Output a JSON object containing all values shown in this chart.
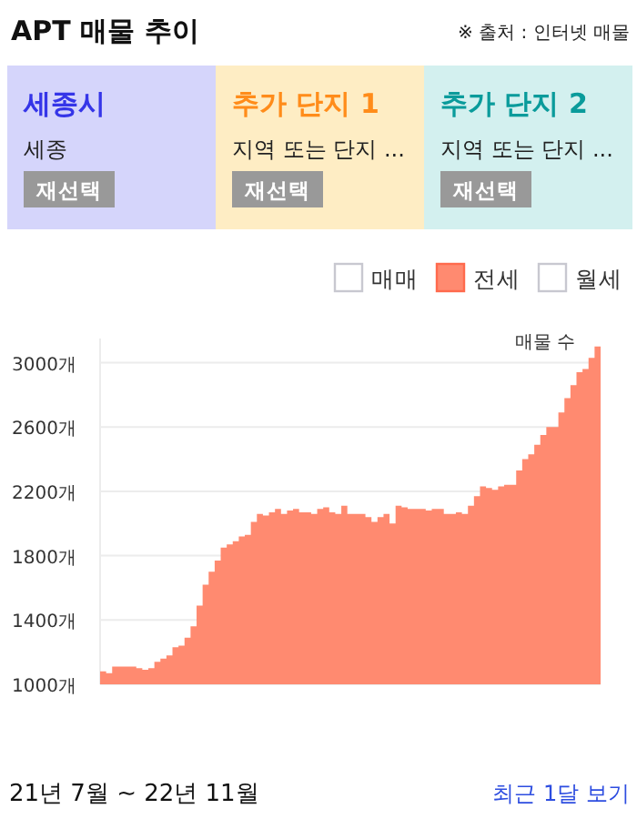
{
  "chart_data": [
    {
      "type": "other",
      "title": "세종시",
      "color": "#3535e8",
      "annotations": [
        "세종",
        "재선택"
      ]
    },
    {
      "type": "other",
      "title": "추가 단지 1",
      "color": "#ff8c1a",
      "annotations": [
        "지역 또는 단지 ...",
        "재선택"
      ]
    },
    {
      "type": "other",
      "title": "추가 단지 2",
      "color": "#0a9b9b",
      "annotations": [
        "지역 또는 단지 ...",
        "재선택"
      ]
    },
    {
      "type": "area",
      "title": "APT 매물 추이",
      "ylabel": "매물 수",
      "annotations": [
        "※ 출처 : 인터넷 매물",
        "21년 7월 ~ 22년 11월",
        "최근 1달 보기"
      ],
      "categories": [
        null,
        null,
        null,
        null,
        null,
        null,
        null,
        null,
        null,
        null,
        null,
        null,
        null,
        null,
        null,
        null,
        null,
        null,
        null,
        null,
        null,
        null,
        null,
        null,
        null,
        null,
        null,
        null,
        null,
        null,
        null,
        null,
        null,
        null,
        null,
        null,
        null,
        null,
        null,
        null,
        null,
        null,
        null,
        null,
        null,
        null,
        null,
        null,
        null,
        null,
        null,
        null,
        null,
        null,
        null,
        null,
        null,
        null,
        null,
        null,
        null,
        null,
        null,
        null,
        null,
        null,
        null,
        null,
        null,
        null,
        null,
        null,
        null,
        null,
        null,
        null,
        null,
        null,
        null,
        null,
        null,
        null,
        null
      ],
      "series": [
        {
          "name": "매매",
          "values": [
            null,
            null,
            null,
            null,
            null,
            null,
            null,
            null,
            null,
            null,
            null,
            null,
            null,
            null,
            null,
            null,
            null,
            null,
            null,
            null,
            null,
            null,
            null,
            null,
            null,
            null,
            null,
            null,
            null,
            null,
            null,
            null,
            null,
            null,
            null,
            null,
            null,
            null,
            null,
            null,
            null,
            null,
            null,
            null,
            null,
            null,
            null,
            null,
            null,
            null,
            null,
            null,
            null,
            null,
            null,
            null,
            null,
            null,
            null,
            null,
            null,
            null,
            null,
            null,
            null,
            null,
            null,
            null,
            null,
            null,
            null,
            null,
            null,
            null,
            null,
            null,
            null,
            null,
            null,
            null,
            null,
            null,
            null
          ]
        },
        {
          "name": "전세",
          "color": "#ff8a70",
          "values": [
            1080,
            1070,
            1110,
            1110,
            1110,
            1110,
            1100,
            1090,
            1100,
            1140,
            1160,
            1180,
            1230,
            1240,
            1290,
            1360,
            1490,
            1620,
            1700,
            1770,
            1850,
            1870,
            1890,
            1920,
            1930,
            2010,
            2060,
            2050,
            2070,
            2090,
            2060,
            2080,
            2090,
            2070,
            2070,
            2060,
            2090,
            2100,
            2070,
            2060,
            2110,
            2060,
            2060,
            2060,
            2040,
            2010,
            2040,
            2060,
            2000,
            2110,
            2100,
            2090,
            2090,
            2090,
            2080,
            2090,
            2090,
            2060,
            2060,
            2070,
            2060,
            2110,
            2170,
            2230,
            2220,
            2210,
            2230,
            2240,
            2240,
            2330,
            2400,
            2430,
            2490,
            2550,
            2600,
            2600,
            2690,
            2780,
            2860,
            2940,
            2960,
            3030,
            3100
          ]
        },
        {
          "name": "월세",
          "values": [
            null,
            null,
            null,
            null,
            null,
            null,
            null,
            null,
            null,
            null,
            null,
            null,
            null,
            null,
            null,
            null,
            null,
            null,
            null,
            null,
            null,
            null,
            null,
            null,
            null,
            null,
            null,
            null,
            null,
            null,
            null,
            null,
            null,
            null,
            null,
            null,
            null,
            null,
            null,
            null,
            null,
            null,
            null,
            null,
            null,
            null,
            null,
            null,
            null,
            null,
            null,
            null,
            null,
            null,
            null,
            null,
            null,
            null,
            null,
            null,
            null,
            null,
            null,
            null,
            null,
            null,
            null,
            null,
            null,
            null,
            null,
            null,
            null,
            null,
            null,
            null,
            null,
            null,
            null,
            null,
            null,
            null,
            null
          ]
        }
      ],
      "ylim": [
        1000,
        3150
      ],
      "yticks": [
        {
          "value": 1000,
          "label": "1000개"
        },
        {
          "value": 1400,
          "label": "1400개"
        },
        {
          "value": 1800,
          "label": "1800개"
        },
        {
          "value": 2200,
          "label": "2200개"
        },
        {
          "value": 2600,
          "label": "2600개"
        },
        {
          "value": 3000,
          "label": "3000개"
        }
      ],
      "grid": "y",
      "legend": "top right"
    }
  ]
}
